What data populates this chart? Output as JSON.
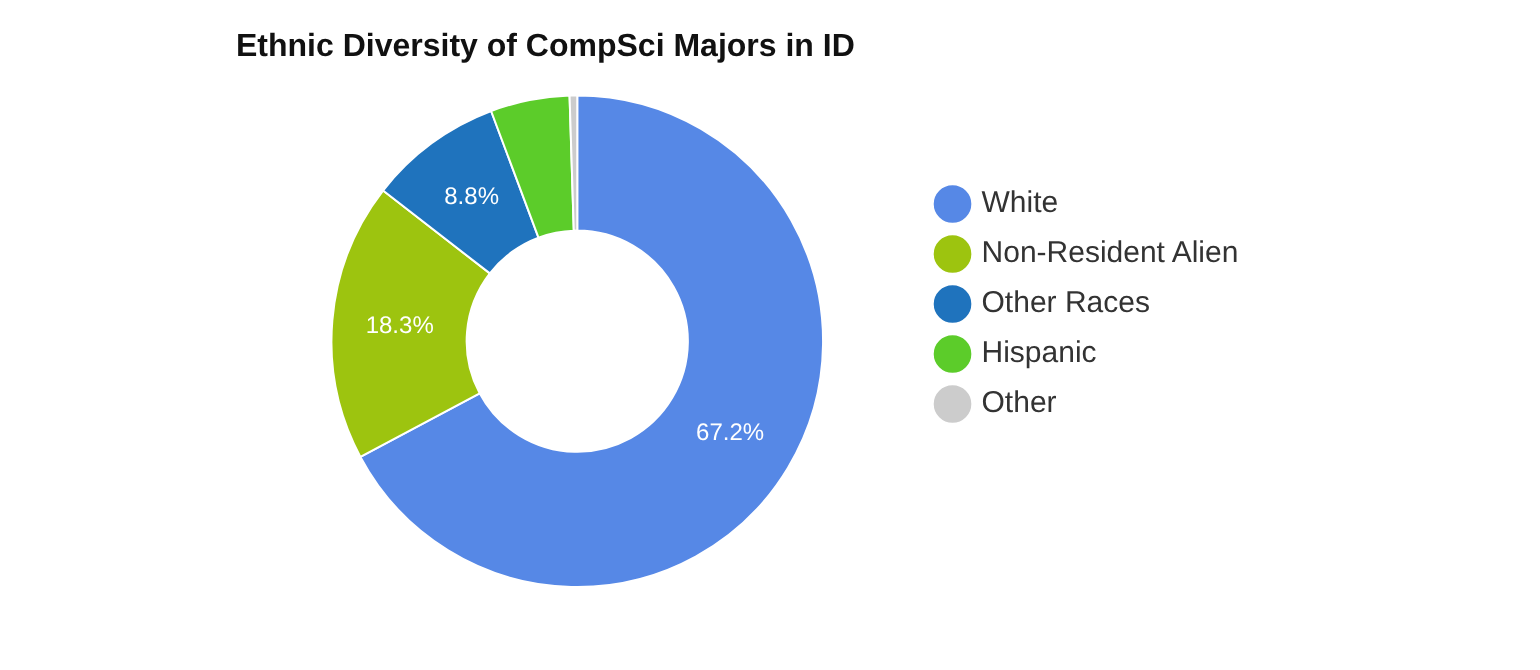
{
  "chart_data": {
    "type": "donut",
    "title": "Ethnic Diversity of CompSci Majors in ID",
    "categories": [
      "White",
      "Non-Resident Alien",
      "Other Races",
      "Hispanic",
      "Other"
    ],
    "values": [
      67.2,
      18.3,
      8.8,
      5.2,
      0.5
    ],
    "colors": [
      "#5688e6",
      "#9dc40f",
      "#1f73bd",
      "#5ccc2a",
      "#cccccc"
    ],
    "value_labels": [
      "67.2%",
      "18.3%",
      "8.8%",
      null,
      null
    ],
    "legend": "right"
  }
}
